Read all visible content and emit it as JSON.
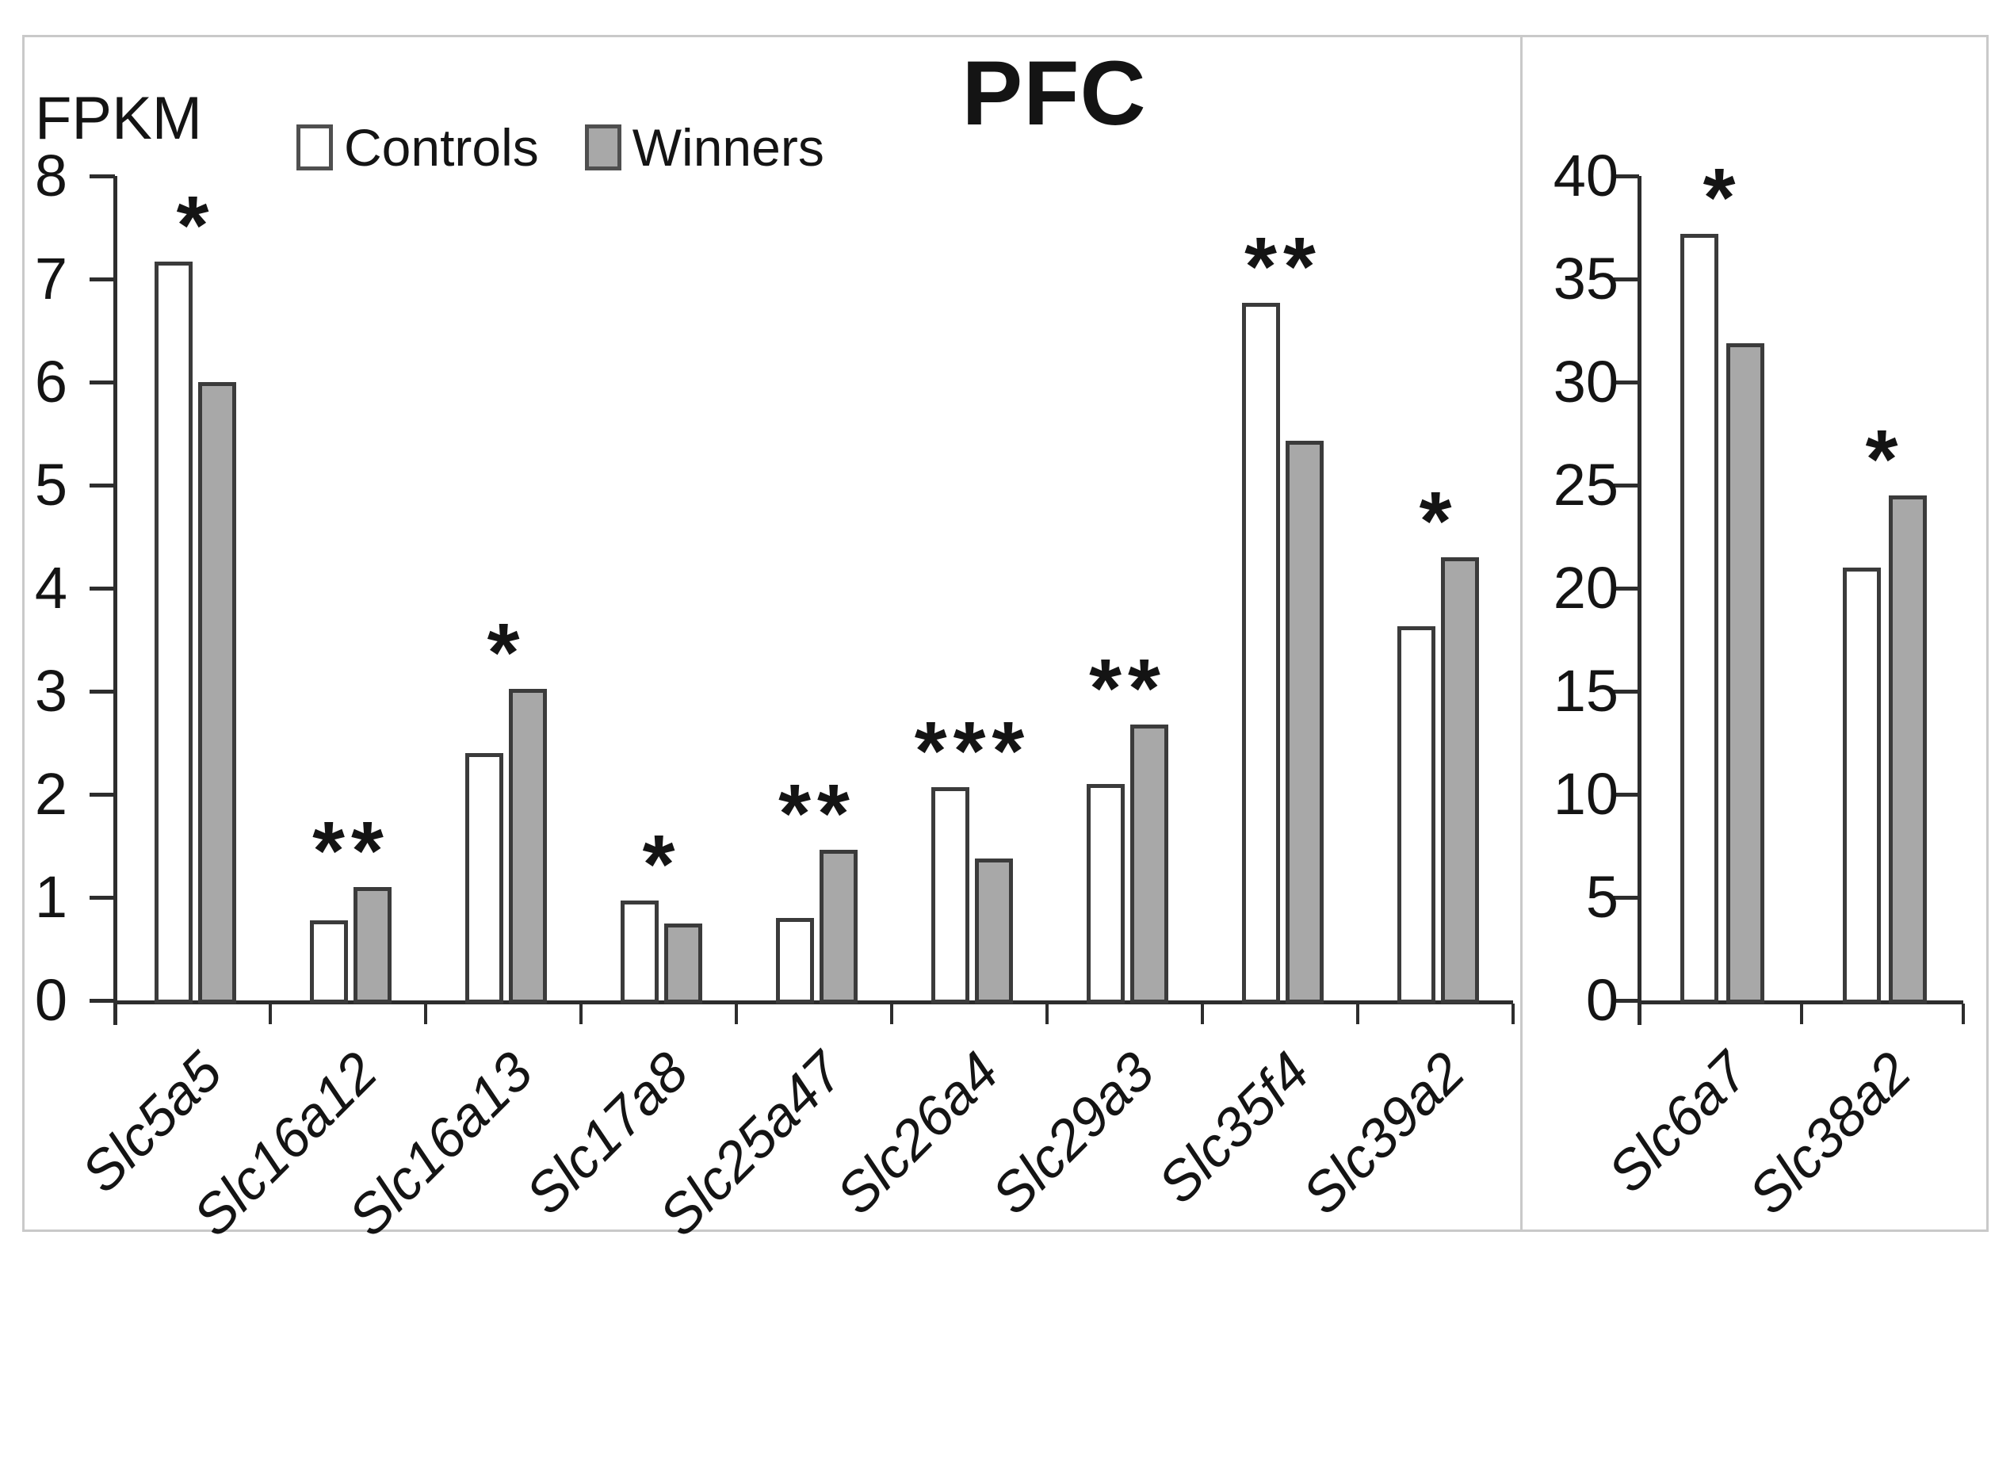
{
  "figure": {
    "title": "PFC",
    "y_axis_label": "FPKM",
    "legend": [
      {
        "label": "Controls",
        "swatch": "white-square-icon",
        "fill": "#ffffff"
      },
      {
        "label": "Winners",
        "swatch": "gray-square-icon",
        "fill": "#a8a8a8"
      }
    ]
  },
  "chart_data": [
    {
      "type": "bar",
      "panel": "left",
      "title": "PFC",
      "ylabel": "FPKM",
      "xlabel": "",
      "ylim": [
        0,
        8
      ],
      "ytick_interval": 1,
      "ytick_labels": [
        "0",
        "1",
        "2",
        "3",
        "4",
        "5",
        "6",
        "7",
        "8"
      ],
      "grid": false,
      "legend_position": "top-left",
      "categories": [
        "Slc5a5",
        "Slc16a12",
        "Slc16a13",
        "Slc17a8",
        "Slc25a47",
        "Slc26a4",
        "Slc29a3",
        "Slc35f4",
        "Slc39a2"
      ],
      "series": [
        {
          "name": "Controls",
          "values": [
            7.17,
            0.78,
            2.4,
            0.97,
            0.8,
            2.07,
            2.1,
            6.77,
            3.63
          ]
        },
        {
          "name": "Winners",
          "values": [
            6.0,
            1.1,
            3.02,
            0.75,
            1.46,
            1.38,
            2.68,
            5.43,
            4.3
          ]
        }
      ],
      "significance": [
        "*",
        "**",
        "*",
        "*",
        "**",
        "***",
        "**",
        "**",
        "*"
      ]
    },
    {
      "type": "bar",
      "panel": "right",
      "title": "",
      "ylabel": "",
      "xlabel": "",
      "ylim": [
        0,
        40
      ],
      "ytick_interval": 5,
      "ytick_labels": [
        "0",
        "5",
        "10",
        "15",
        "20",
        "25",
        "30",
        "35",
        "40"
      ],
      "grid": false,
      "categories": [
        "Slc6a7",
        "Slc38a2"
      ],
      "series": [
        {
          "name": "Controls",
          "values": [
            37.2,
            21.0
          ]
        },
        {
          "name": "Winners",
          "values": [
            31.9,
            24.5
          ]
        }
      ],
      "significance": [
        "*",
        "*"
      ]
    }
  ],
  "colors": {
    "controls_fill": "#ffffff",
    "winners_fill": "#a8a8a8",
    "bar_border": "#3b3b3b",
    "axis": "#2d2d2d",
    "frame": "#c9c9c9",
    "text": "#141414"
  }
}
